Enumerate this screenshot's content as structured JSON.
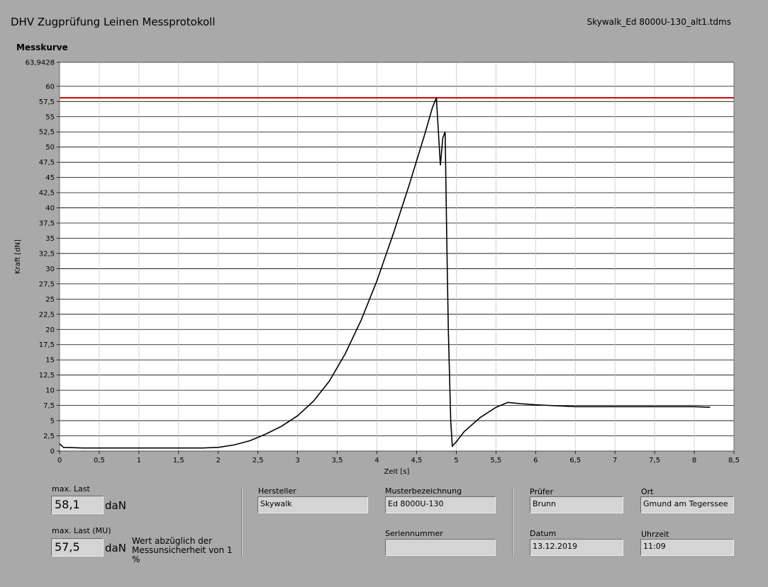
{
  "header": {
    "title": "DHV Zugprüfung Leinen Messprotokoll",
    "file": "Skywalk_Ed 8000U-130_alt1.tdms"
  },
  "chart_label": "Messkurve",
  "chart_data": {
    "type": "line",
    "title": "",
    "xlabel": "Zeit [s]",
    "ylabel": "Kraft [dN]",
    "xlim": [
      0,
      8.5
    ],
    "ylim": [
      0,
      63.9428
    ],
    "ymax_label": "63,9428",
    "x_ticks": [
      0,
      0.5,
      1,
      1.5,
      2,
      2.5,
      3,
      3.5,
      4,
      4.5,
      5,
      5.5,
      6,
      6.5,
      7,
      7.5,
      8,
      8.5
    ],
    "x_tick_labels": [
      "0",
      "0,5",
      "1",
      "1,5",
      "2",
      "2,5",
      "3",
      "3,5",
      "4",
      "4,5",
      "5",
      "5,5",
      "6",
      "6,5",
      "7",
      "7,5",
      "8",
      "8,5"
    ],
    "y_ticks": [
      0,
      2.5,
      5,
      7.5,
      10,
      12.5,
      15,
      17.5,
      20,
      22.5,
      25,
      27.5,
      30,
      32.5,
      35,
      37.5,
      40,
      42.5,
      45,
      47.5,
      50,
      52.5,
      55,
      57.5,
      60
    ],
    "y_tick_labels": [
      "0",
      "2,5",
      "5",
      "7,5",
      "10",
      "12,5",
      "15",
      "17,5",
      "20",
      "22,5",
      "25",
      "27,5",
      "30",
      "32,5",
      "35",
      "37,5",
      "40",
      "42,5",
      "45",
      "47,5",
      "50",
      "52,5",
      "55",
      "57,5",
      "60"
    ],
    "grid": true,
    "threshold": {
      "value": 58.1,
      "color": "#cc0000"
    },
    "series": [
      {
        "color": "#000000",
        "x": [
          0,
          0.05,
          0.3,
          0.6,
          1.0,
          1.4,
          1.8,
          2.0,
          2.2,
          2.4,
          2.6,
          2.8,
          3.0,
          3.2,
          3.4,
          3.6,
          3.8,
          4.0,
          4.2,
          4.4,
          4.6,
          4.7,
          4.75,
          4.8,
          4.83,
          4.86,
          4.88,
          4.9,
          4.93,
          4.95,
          5.0,
          5.1,
          5.3,
          5.5,
          5.65,
          5.8,
          6.0,
          6.5,
          7.0,
          7.5,
          8.0,
          8.2
        ],
        "y": [
          1.2,
          0.6,
          0.5,
          0.5,
          0.5,
          0.5,
          0.5,
          0.6,
          1.0,
          1.7,
          2.8,
          4.1,
          5.8,
          8.2,
          11.5,
          16.0,
          21.5,
          28.0,
          35.5,
          43.5,
          52.0,
          56.5,
          58.1,
          47.0,
          51.5,
          52.5,
          35.0,
          20.0,
          5.0,
          0.8,
          1.5,
          3.2,
          5.5,
          7.2,
          8.0,
          7.8,
          7.6,
          7.3,
          7.3,
          7.3,
          7.3,
          7.2
        ]
      }
    ]
  },
  "results": {
    "max_last_label": "max. Last",
    "max_last_value": "58,1",
    "max_last_unit": "daN",
    "max_last_mu_label": "max. Last (MU)",
    "max_last_mu_value": "57,5",
    "max_last_mu_unit": "daN",
    "note": "Wert abzüglich der Messunsicherheit von 1 %"
  },
  "info": {
    "hersteller_label": "Hersteller",
    "hersteller": "Skywalk",
    "muster_label": "Musterbezeichnung",
    "muster": "Ed 8000U-130",
    "serien_label": "Seriennummer",
    "serien": "",
    "pruefer_label": "Prüfer",
    "pruefer": "Brunn",
    "ort_label": "Ort",
    "ort": "Gmund am Tegerssee",
    "datum_label": "Datum",
    "datum": "13.12.2019",
    "uhrzeit_label": "Uhrzeit",
    "uhrzeit": "11:09"
  }
}
